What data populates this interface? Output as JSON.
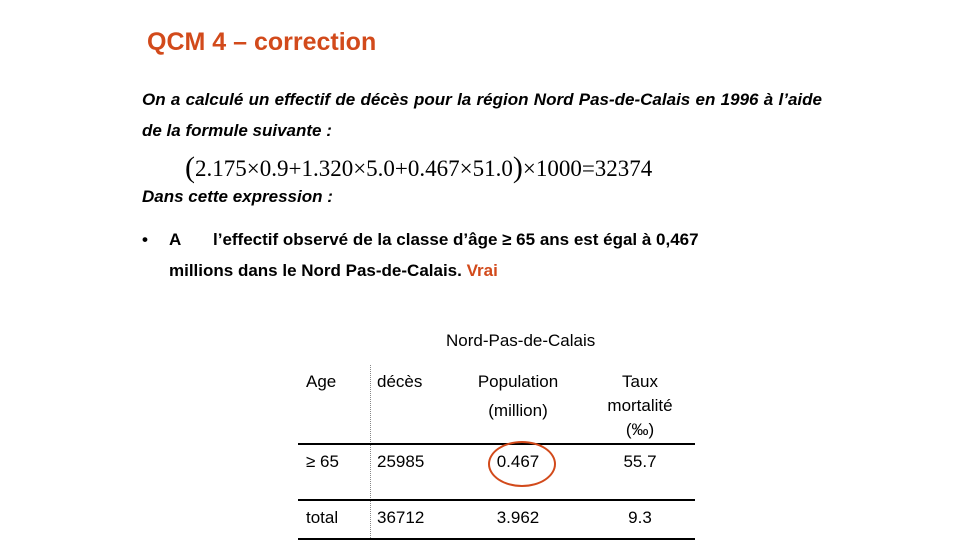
{
  "title": "QCM 4 – correction",
  "intro": "On a calculé un effectif de décès pour la région Nord Pas-de-Calais en 1996  à l’aide de la formule suivante :",
  "formula": {
    "open_paren": "(",
    "body": "2.175×0.9+1.320×5.0+0.467×51.0",
    "close_paren": ")",
    "tail": "×1000=32374"
  },
  "expression_label": "Dans cette expression :",
  "answer": {
    "bullet": "•",
    "letter": "A",
    "line1": "l’effectif observé de la classe d’âge ≥ 65 ans est égal à 0,467",
    "line2": "millions  dans le Nord Pas-de-Calais.",
    "verdict": "Vrai",
    "verdict_color": "#d24a1b"
  },
  "table": {
    "caption": "Nord-Pas-de-Calais",
    "headers": {
      "age": "Age",
      "deces": "décès",
      "population_line1": "Population",
      "population_line2": "(million)",
      "taux_line1": "Taux",
      "taux_line2": "mortalité",
      "taux_line3": "(‰)"
    },
    "rows": [
      {
        "age": "≥ 65",
        "deces": "25985",
        "population": "0.467",
        "taux": "55.7"
      },
      {
        "age": "total",
        "deces": "36712",
        "population": "3.962",
        "taux": "9.3"
      }
    ],
    "highlight_color": "#d24a1b"
  }
}
